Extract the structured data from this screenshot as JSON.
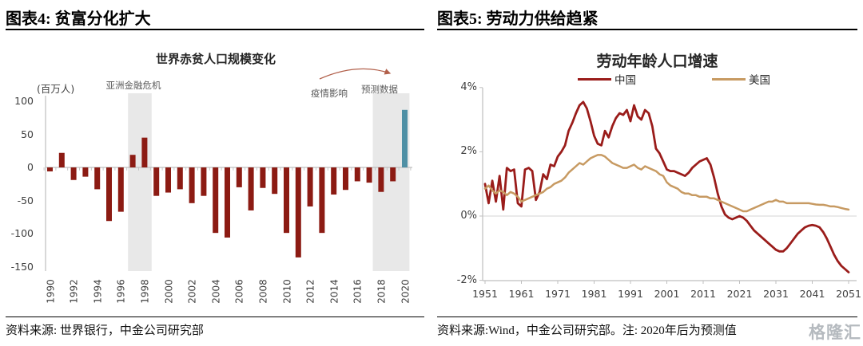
{
  "watermark": {
    "text": "格隆汇",
    "color": "#A9AEB4"
  },
  "figure4": {
    "header": "图表4: 贫富分化扩大",
    "title": "世界赤贫人口规模变化",
    "unit_label": "(百万人)",
    "annotations": {
      "asian_crisis": "亚洲金融危机",
      "pandemic": "疫情影响",
      "forecast": "预测数据"
    },
    "source": "资料来源: 世界银行，中金公司研究部",
    "colors": {
      "bar": "#8C1B13",
      "forecast_bar": "#4F90A5",
      "band": "#E8E8E8",
      "axis": "#BFBFBF",
      "arrow": "#B2604B",
      "tick_text": "#3F3F3F"
    },
    "chart_data": {
      "type": "bar",
      "title": "世界赤贫人口规模变化",
      "ylabel": "(百万人)",
      "ylim": [
        -150,
        100
      ],
      "y_ticks": [
        100,
        50,
        0,
        -50,
        -100,
        -150
      ],
      "x_tick_years": [
        1990,
        1992,
        1994,
        1996,
        1998,
        2000,
        2002,
        2004,
        2006,
        2008,
        2010,
        2012,
        2014,
        2016,
        2018,
        2020
      ],
      "years": [
        1990,
        1991,
        1992,
        1993,
        1994,
        1995,
        1996,
        1997,
        1998,
        1999,
        2000,
        2001,
        2002,
        2003,
        2004,
        2005,
        2006,
        2007,
        2008,
        2009,
        2010,
        2011,
        2012,
        2013,
        2014,
        2015,
        2016,
        2017,
        2018,
        2019,
        2020
      ],
      "values": [
        -6,
        22,
        -19,
        -14,
        -33,
        -81,
        -67,
        19,
        45,
        -43,
        -38,
        -33,
        -54,
        -43,
        -99,
        -106,
        -30,
        -65,
        -31,
        -40,
        -99,
        -136,
        -59,
        -99,
        -41,
        -34,
        -21,
        -23,
        -37,
        -21,
        87
      ],
      "forecast_years": [
        2020
      ],
      "highlight_bands": [
        {
          "name": "亚洲金融危机",
          "from_year": 1996.6,
          "to_year": 1998.6
        },
        {
          "name": "预测数据",
          "from_year": 2017.3,
          "to_year": 2020.4
        }
      ]
    }
  },
  "figure5": {
    "header": "图表5: 劳动力供给趋紧",
    "title": "劳动年龄人口增速",
    "source": "资料来源:Wind，中金公司研究部。注: 2020年后为预测值",
    "legend": [
      {
        "label": "中国",
        "color": "#9A1C1A"
      },
      {
        "label": "美国",
        "color": "#C79A62"
      }
    ],
    "colors": {
      "axis": "#BFBFBF",
      "gridline": "#D6D6D6",
      "tick_text": "#3F3F3F"
    },
    "chart_data": {
      "type": "line",
      "title": "劳动年龄人口增速",
      "x_start_year": 1951,
      "x_ticks": [
        1951,
        1961,
        1971,
        1981,
        1991,
        2001,
        2011,
        2021,
        2031,
        2041,
        2051
      ],
      "y_ticks": [
        {
          "label": "4%",
          "value": 4
        },
        {
          "label": "2%",
          "value": 2
        },
        {
          "label": "0%",
          "value": 0
        },
        {
          "label": "-2%",
          "value": -2
        }
      ],
      "ylim": [
        -2,
        4
      ],
      "legend_position": "top",
      "note": "2020年后为预测值",
      "series": [
        {
          "name": "中国",
          "color": "#9A1C1A",
          "values": [
            1.0,
            0.4,
            1.1,
            0.45,
            1.25,
            0.2,
            1.5,
            1.4,
            1.45,
            0.4,
            0.3,
            1.45,
            1.5,
            1.4,
            0.5,
            0.75,
            1.3,
            1.15,
            1.6,
            1.55,
            1.85,
            2.0,
            2.2,
            2.65,
            2.9,
            3.2,
            3.45,
            3.55,
            3.35,
            2.95,
            2.5,
            2.25,
            2.2,
            2.65,
            2.45,
            2.8,
            3.05,
            3.2,
            3.15,
            3.3,
            2.95,
            3.45,
            3.1,
            3.0,
            3.3,
            3.2,
            2.8,
            2.1,
            1.95,
            1.7,
            1.45,
            1.4,
            1.4,
            1.35,
            1.3,
            1.25,
            1.35,
            1.5,
            1.6,
            1.7,
            1.75,
            1.8,
            1.6,
            1.2,
            0.7,
            0.3,
            0.05,
            -0.05,
            -0.1,
            -0.05,
            0.0,
            -0.05,
            -0.15,
            -0.3,
            -0.45,
            -0.55,
            -0.65,
            -0.75,
            -0.85,
            -0.95,
            -1.05,
            -1.1,
            -1.1,
            -1.0,
            -0.85,
            -0.7,
            -0.55,
            -0.45,
            -0.35,
            -0.3,
            -0.28,
            -0.3,
            -0.35,
            -0.5,
            -0.7,
            -0.95,
            -1.2,
            -1.4,
            -1.55,
            -1.65,
            -1.75
          ]
        },
        {
          "name": "美国",
          "color": "#C79A62",
          "values": [
            0.85,
            0.95,
            0.8,
            0.7,
            0.8,
            0.75,
            0.65,
            0.75,
            0.7,
            0.6,
            0.45,
            0.5,
            0.55,
            0.6,
            0.65,
            0.7,
            0.75,
            0.85,
            0.9,
            1.0,
            1.05,
            1.1,
            1.2,
            1.35,
            1.45,
            1.55,
            1.65,
            1.6,
            1.7,
            1.8,
            1.85,
            1.9,
            1.9,
            1.85,
            1.75,
            1.65,
            1.6,
            1.55,
            1.5,
            1.5,
            1.55,
            1.6,
            1.5,
            1.45,
            1.55,
            1.5,
            1.45,
            1.4,
            1.3,
            1.25,
            1.05,
            0.95,
            0.9,
            0.85,
            0.75,
            0.7,
            0.7,
            0.65,
            0.65,
            0.6,
            0.6,
            0.6,
            0.55,
            0.55,
            0.5,
            0.45,
            0.4,
            0.35,
            0.3,
            0.25,
            0.2,
            0.15,
            0.15,
            0.2,
            0.25,
            0.3,
            0.35,
            0.4,
            0.45,
            0.45,
            0.5,
            0.45,
            0.45,
            0.4,
            0.4,
            0.4,
            0.4,
            0.4,
            0.4,
            0.4,
            0.38,
            0.36,
            0.35,
            0.35,
            0.33,
            0.3,
            0.3,
            0.28,
            0.25,
            0.22,
            0.2
          ]
        }
      ]
    }
  }
}
